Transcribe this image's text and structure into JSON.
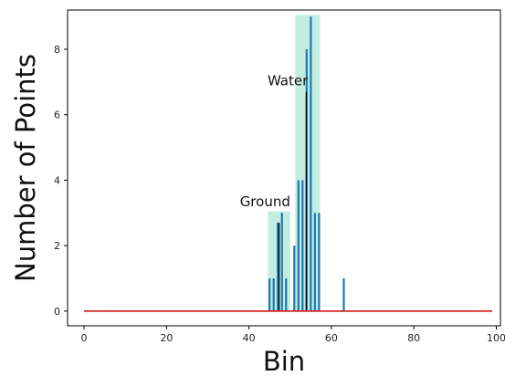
{
  "chart_data": {
    "type": "bar",
    "title": "",
    "xlabel": "Bin",
    "ylabel": "Number of Points",
    "xlim": [
      -4,
      101
    ],
    "ylim": [
      -0.45,
      9.2
    ],
    "xticks": [
      0,
      20,
      40,
      60,
      80,
      100
    ],
    "yticks": [
      0,
      2,
      4,
      6,
      8
    ],
    "grid": false,
    "colors": {
      "bars": "#1f77b4",
      "baseline": "#d62728",
      "highlight": "#5fd3b0",
      "peak_line": "#000000"
    },
    "series": [
      {
        "x": [
          45,
          46,
          47,
          48,
          49,
          51,
          52,
          53,
          54,
          55,
          56,
          57,
          63
        ],
        "values": [
          1,
          1,
          2.7,
          3,
          1,
          2,
          4,
          4,
          8,
          9,
          3,
          3,
          1
        ]
      }
    ],
    "baseline": {
      "x_start": 0,
      "x_end": 99,
      "value": 0
    },
    "highlight_regions": [
      {
        "label": "Ground",
        "x_start": 44.6,
        "x_end": 50.0,
        "y_top": 3.05,
        "peak_x": 47.3,
        "peak_value": 2.7
      },
      {
        "label": "Water",
        "x_start": 51.2,
        "x_end": 57.2,
        "y_top": 9.05,
        "peak_x": 53.9,
        "peak_value": 6.7
      }
    ],
    "annotations": [
      {
        "text": "Ground",
        "x": 37.8,
        "y": 3.2
      },
      {
        "text": "Water",
        "x": 44.5,
        "y": 6.9
      }
    ]
  }
}
